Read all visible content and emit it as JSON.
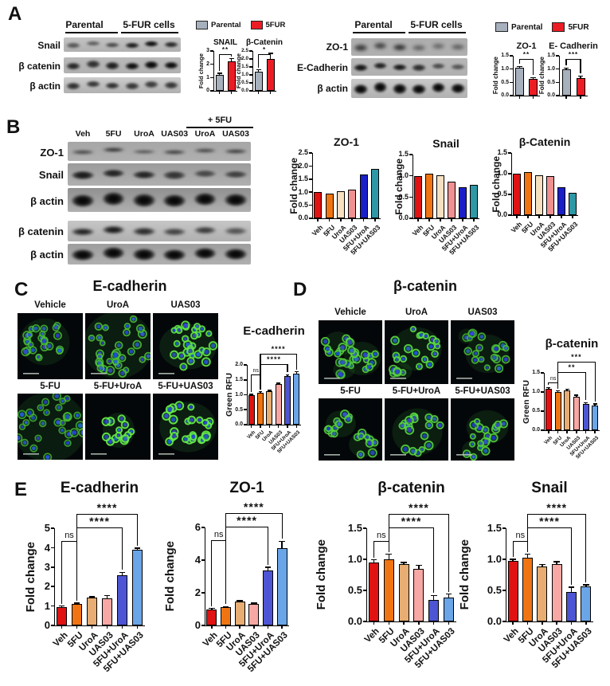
{
  "panel_a": {
    "label": "A",
    "groups": [
      "Parental",
      "5-FUR cells"
    ],
    "left_rows": [
      "Snail",
      "β catenin",
      "β actin"
    ],
    "right_rows": [
      "ZO-1",
      "E-Cadherin",
      "β actin"
    ],
    "legend": [
      {
        "label": "Parental",
        "color": "#a7b0bd"
      },
      {
        "label": "5FUR",
        "color": "#ec1c24"
      }
    ]
  },
  "panel_b": {
    "label": "B",
    "plus_label": "+ 5FU",
    "lanes": [
      "Veh",
      "5FU",
      "UroA",
      "UAS03",
      "UroA",
      "UAS03"
    ],
    "rows_top": [
      "ZO-1",
      "Snail",
      "β actin"
    ],
    "rows_bottom": [
      "β catenin",
      "β actin"
    ]
  },
  "panel_c": {
    "label": "C",
    "title": "E-cadherin",
    "images": [
      "Vehicle",
      "UroA",
      "UAS03",
      "5-FU",
      "5-FU+UroA",
      "5-FU+UAS03"
    ]
  },
  "panel_d": {
    "label": "D",
    "title": "β-catenin",
    "images": [
      "Vehicle",
      "UroA",
      "UAS03",
      "5-FU",
      "5-FU+UroA",
      "5-FU+UAS03"
    ]
  },
  "panel_e": {
    "label": "E"
  },
  "chart_data": [
    {
      "id": "a_snail",
      "type": "bar",
      "title": "SNAIL",
      "ylabel": "Fold change",
      "categories": [
        "Parental",
        "5FUR"
      ],
      "values": [
        1.2,
        2.2
      ],
      "errors": [
        0.12,
        0.22
      ],
      "ylim": [
        0,
        3
      ],
      "yticks": [
        "0",
        "1",
        "2",
        "3"
      ],
      "colors": [
        "#a7b0bd",
        "#ec1c24"
      ],
      "brackets": [
        {
          "from": 0,
          "to": 1,
          "label": "**"
        }
      ]
    },
    {
      "id": "a_bcatenin",
      "type": "bar",
      "title": "β-Catenin",
      "ylabel": "Fold change",
      "categories": [
        "Parental",
        "5FUR"
      ],
      "values": [
        1.2,
        2.0
      ],
      "errors": [
        0.12,
        0.35
      ],
      "ylim": [
        0,
        2.5
      ],
      "yticks": [
        "0.0",
        "0.5",
        "1.0",
        "1.5",
        "2.0",
        "2.5"
      ],
      "colors": [
        "#a7b0bd",
        "#ec1c24"
      ],
      "brackets": [
        {
          "from": 0,
          "to": 1,
          "label": "*"
        }
      ]
    },
    {
      "id": "a_zo1",
      "type": "bar",
      "title": "ZO-1",
      "ylabel": "Fold change",
      "categories": [
        "Parental",
        "5FUR"
      ],
      "values": [
        1.05,
        0.62
      ],
      "errors": [
        0.05,
        0.06
      ],
      "ylim": [
        0,
        1.5
      ],
      "yticks": [
        "0.0",
        "0.5",
        "1.0",
        "1.5"
      ],
      "colors": [
        "#a7b0bd",
        "#ec1c24"
      ],
      "brackets": [
        {
          "from": 0,
          "to": 1,
          "label": "**"
        }
      ]
    },
    {
      "id": "a_ecad",
      "type": "bar",
      "title": "E- Cadherin",
      "ylabel": "Fold change",
      "categories": [
        "Parental",
        "5FUR"
      ],
      "values": [
        1.0,
        0.67
      ],
      "errors": [
        0.04,
        0.07
      ],
      "ylim": [
        0,
        1.5
      ],
      "yticks": [
        "0.0",
        "0.5",
        "1.0",
        "1.5"
      ],
      "colors": [
        "#a7b0bd",
        "#ec1c24"
      ],
      "brackets": [
        {
          "from": 0,
          "to": 1,
          "label": "***"
        }
      ]
    },
    {
      "id": "b_zo1",
      "type": "bar",
      "title": "ZO-1",
      "ylabel": "Fold change",
      "categories": [
        "Veh",
        "5FU",
        "UroA",
        "UAS03",
        "5FU+UroA",
        "5FU+UAS03"
      ],
      "values": [
        1.0,
        0.95,
        1.05,
        1.1,
        1.68,
        1.9
      ],
      "ylim": [
        0,
        2.5
      ],
      "yticks": [
        "0.0",
        "0.5",
        "1.0",
        "1.5",
        "2.0",
        "2.5"
      ],
      "colors": [
        "#e01212",
        "#f07512",
        "#f7e0c0",
        "#f09090",
        "#1a1fc8",
        "#2f98a6"
      ]
    },
    {
      "id": "b_snail",
      "type": "bar",
      "title": "Snail",
      "ylabel": "Fold change",
      "categories": [
        "Veh",
        "5FU",
        "UroA",
        "UAS03",
        "5FU+UroA",
        "5FU+UAS03"
      ],
      "values": [
        1.0,
        1.05,
        1.02,
        0.87,
        0.73,
        0.78
      ],
      "ylim": [
        0,
        1.5
      ],
      "yticks": [
        "0.0",
        "0.5",
        "1.0",
        "1.5"
      ],
      "colors": [
        "#e01212",
        "#f07512",
        "#f7e0c0",
        "#f09090",
        "#1a1fc8",
        "#2f98a6"
      ]
    },
    {
      "id": "b_bcatenin",
      "type": "bar",
      "title": "β-Catenin",
      "ylabel": "Fold change",
      "categories": [
        "Veh",
        "5FU",
        "UroA",
        "UAS03",
        "5FU+UroA",
        "5FU+UAS03"
      ],
      "values": [
        1.0,
        1.03,
        0.97,
        0.95,
        0.67,
        0.53
      ],
      "ylim": [
        0,
        1.5
      ],
      "yticks": [
        "0.0",
        "0.5",
        "1.0",
        "1.5"
      ],
      "colors": [
        "#e01212",
        "#f07512",
        "#f7e0c0",
        "#f09090",
        "#1a1fc8",
        "#2f98a6"
      ]
    },
    {
      "id": "c_rfu",
      "type": "bar",
      "title": "E-cadherin",
      "ylabel": "Green RFU",
      "categories": [
        "Veh",
        "5FU",
        "UroA",
        "UAS03",
        "5FU+UroA",
        "5FU+UAS03"
      ],
      "values": [
        0.98,
        1.07,
        1.12,
        1.35,
        1.63,
        1.72
      ],
      "errors": [
        0.03,
        0.03,
        0.03,
        0.04,
        0.04,
        0.05
      ],
      "ylim": [
        0,
        2
      ],
      "yticks": [
        "0.0",
        "0.5",
        "1.0",
        "1.5",
        "2.0"
      ],
      "colors": [
        "#e01212",
        "#f07512",
        "#e7ad72",
        "#f7a8a4",
        "#4d55d4",
        "#6aa5e8"
      ],
      "brackets": [
        {
          "from": 0,
          "to": 1,
          "label": "ns"
        },
        {
          "from": 1,
          "to": 4,
          "label": "****"
        },
        {
          "from": 1,
          "to": 5,
          "label": "****"
        }
      ]
    },
    {
      "id": "d_rfu",
      "type": "bar",
      "title": "β-catenin",
      "ylabel": "Green RFU",
      "categories": [
        "Veh",
        "5FU",
        "UroA",
        "UAS03",
        "5FU+UroA",
        "5FU+UAS03"
      ],
      "values": [
        1.08,
        1.0,
        1.04,
        0.88,
        0.68,
        0.65
      ],
      "errors": [
        0.04,
        0.03,
        0.03,
        0.04,
        0.04,
        0.04
      ],
      "ylim": [
        0,
        1.5
      ],
      "yticks": [
        "0.0",
        "0.5",
        "1.0",
        "1.5"
      ],
      "colors": [
        "#e01212",
        "#f07512",
        "#e7ad72",
        "#f7a8a4",
        "#4d55d4",
        "#6aa5e8"
      ],
      "brackets": [
        {
          "from": 0,
          "to": 1,
          "label": "ns"
        },
        {
          "from": 1,
          "to": 4,
          "label": "**"
        },
        {
          "from": 1,
          "to": 5,
          "label": "***"
        }
      ]
    },
    {
      "id": "e_ecad",
      "type": "bar",
      "title": "E-cadherin",
      "ylabel": "Fold change",
      "categories": [
        "Veh",
        "5FU",
        "UroA",
        "UAS03",
        "5FU+UroA",
        "5FU+UAS03"
      ],
      "values": [
        0.95,
        1.1,
        1.42,
        1.4,
        2.6,
        3.9
      ],
      "errors": [
        0.05,
        0.04,
        0.06,
        0.13,
        0.13,
        0.07
      ],
      "ylim": [
        0,
        5
      ],
      "yticks": [
        "0",
        "1",
        "2",
        "3",
        "4",
        "5"
      ],
      "colors": [
        "#e01212",
        "#f07512",
        "#e7ad72",
        "#f7a8a4",
        "#4d55d4",
        "#6aa5e8"
      ],
      "brackets": [
        {
          "from": 0,
          "to": 1,
          "label": "ns"
        },
        {
          "from": 1,
          "to": 4,
          "label": "****"
        },
        {
          "from": 1,
          "to": 5,
          "label": "****"
        }
      ]
    },
    {
      "id": "e_zo1",
      "type": "bar",
      "title": "ZO-1",
      "ylabel": "Fold change",
      "categories": [
        "Veh",
        "5FU",
        "UroA",
        "UAS03",
        "5FU+UroA",
        "5FU+UAS03"
      ],
      "values": [
        1.0,
        1.1,
        1.45,
        1.3,
        3.35,
        4.75
      ],
      "errors": [
        0.04,
        0.05,
        0.06,
        0.06,
        0.22,
        0.4
      ],
      "ylim": [
        0,
        6
      ],
      "yticks": [
        "0",
        "2",
        "4",
        "6"
      ],
      "colors": [
        "#e01212",
        "#f07512",
        "#e7ad72",
        "#f7a8a4",
        "#4d55d4",
        "#6aa5e8"
      ],
      "brackets": [
        {
          "from": 0,
          "to": 1,
          "label": "ns"
        },
        {
          "from": 1,
          "to": 4,
          "label": "****"
        },
        {
          "from": 1,
          "to": 5,
          "label": "****"
        }
      ]
    },
    {
      "id": "e_bcatenin",
      "type": "bar",
      "title": "β-catenin",
      "ylabel": "Fold change",
      "categories": [
        "Veh",
        "5FU",
        "UroA",
        "UAS03",
        "5FU+UroA",
        "5FU+UAS03"
      ],
      "values": [
        0.95,
        1.0,
        0.92,
        0.85,
        0.35,
        0.38
      ],
      "errors": [
        0.04,
        0.08,
        0.03,
        0.05,
        0.07,
        0.06
      ],
      "ylim": [
        0,
        1.5
      ],
      "yticks": [
        "0.0",
        "0.5",
        "1.0",
        "1.5"
      ],
      "colors": [
        "#e01212",
        "#f07512",
        "#e7ad72",
        "#f7a8a4",
        "#4d55d4",
        "#6aa5e8"
      ],
      "brackets": [
        {
          "from": 0,
          "to": 1,
          "label": "ns"
        },
        {
          "from": 1,
          "to": 4,
          "label": "****"
        },
        {
          "from": 1,
          "to": 5,
          "label": "****"
        }
      ]
    },
    {
      "id": "e_snail",
      "type": "bar",
      "title": "Snail",
      "ylabel": "Fold change",
      "categories": [
        "Veh",
        "5FU",
        "UroA",
        "UAS03",
        "5FU+UroA",
        "5FU+UAS03"
      ],
      "values": [
        0.97,
        1.02,
        0.89,
        0.92,
        0.47,
        0.56
      ],
      "errors": [
        0.03,
        0.06,
        0.03,
        0.04,
        0.08,
        0.03
      ],
      "ylim": [
        0,
        1.5
      ],
      "yticks": [
        "0.0",
        "0.5",
        "1.0",
        "1.5"
      ],
      "colors": [
        "#e01212",
        "#f07512",
        "#e7ad72",
        "#f7a8a4",
        "#4d55d4",
        "#6aa5e8"
      ],
      "brackets": [
        {
          "from": 0,
          "to": 1,
          "label": "ns"
        },
        {
          "from": 1,
          "to": 4,
          "label": "****"
        },
        {
          "from": 1,
          "to": 5,
          "label": "****"
        }
      ]
    }
  ]
}
